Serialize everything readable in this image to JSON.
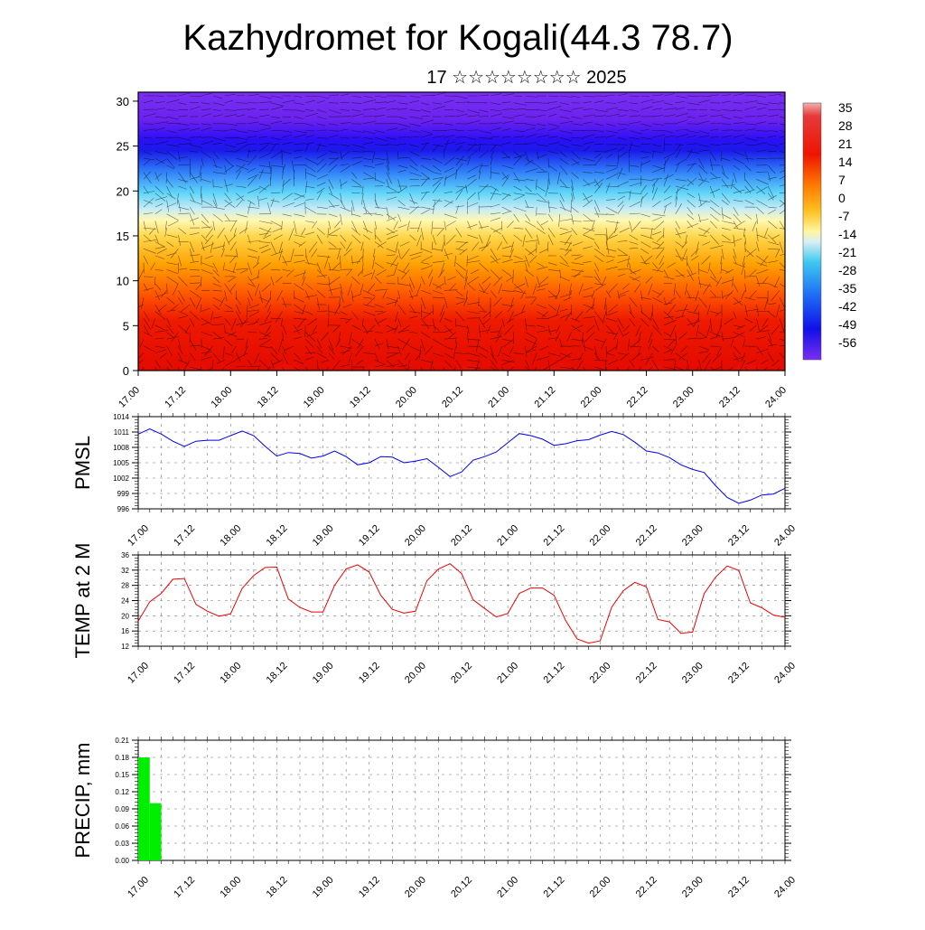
{
  "title": "Kazhydromet for Kogali(44.3 78.7)",
  "subtitle": "17 ☆☆☆☆☆☆☆☆ 2025",
  "chart_data": [
    {
      "type": "heatmap",
      "name": "vertical-section",
      "ylim": [
        0,
        31
      ],
      "yticks": [
        "0",
        "5",
        "10",
        "15",
        "20",
        "25",
        "30"
      ],
      "ytick_values": [
        0,
        5,
        10,
        15,
        20,
        25,
        30
      ],
      "xticks": [
        "17.00",
        "17.12",
        "18.00",
        "18.12",
        "19.00",
        "19.12",
        "20.00",
        "20.12",
        "21.00",
        "21.12",
        "22.00",
        "22.12",
        "23.00",
        "23.12",
        "24.00"
      ],
      "colorbar": {
        "labels": [
          "35",
          "28",
          "21",
          "14",
          "7",
          "0",
          "-7",
          "-14",
          "-21",
          "-28",
          "-35",
          "-42",
          "-49",
          "-56"
        ],
        "range": [
          -63,
          38
        ]
      },
      "colors": {
        "cold": "#7b2ff0",
        "deep": "#1a1aff",
        "mid": "#36c8f5",
        "neutral": "#fff6b0",
        "warm": "#ffb000",
        "hot": "#ee1500"
      }
    },
    {
      "type": "line",
      "name": "pmsl",
      "ylabel": "PMSL",
      "ylim": [
        996,
        1014
      ],
      "yticks": [
        "996",
        "999",
        "1002",
        "1005",
        "1008",
        "1011",
        "1014"
      ],
      "ytick_values": [
        996,
        999,
        1002,
        1005,
        1008,
        1011,
        1014
      ],
      "xticks": [
        "17.00",
        "17.12",
        "18.00",
        "18.12",
        "19.00",
        "19.12",
        "20.00",
        "20.12",
        "21.00",
        "21.12",
        "22.00",
        "22.12",
        "23.00",
        "23.12",
        "24.00"
      ],
      "color": "#0000ee",
      "series": [
        {
          "values": [
            1010.6,
            1011.6,
            1010.6,
            1009.2,
            1008.2,
            1009.2,
            1009.4,
            1009.4,
            1010.3,
            1011.2,
            1010.3,
            1008.2,
            1006.3,
            1007,
            1006.8,
            1005.9,
            1006.3,
            1007.3,
            1006.2,
            1004.6,
            1005,
            1006.2,
            1006.1,
            1005,
            1005.3,
            1005.8,
            1004.1,
            1002.3,
            1003.2,
            1005.5,
            1006.2,
            1007.1,
            1008.9,
            1010.7,
            1010.3,
            1009.6,
            1008.4,
            1008.7,
            1009.3,
            1009.5,
            1010.4,
            1011.1,
            1010.5,
            1009,
            1007.3,
            1006.9,
            1006,
            1004.6,
            1003.7,
            1003.1,
            1000.5,
            998.2,
            997.1,
            997.7,
            998.7,
            998.9,
            1000
          ]
        }
      ]
    },
    {
      "type": "line",
      "name": "temp-2m",
      "ylabel": "TEMP at 2 M",
      "ylim": [
        12,
        36
      ],
      "yticks": [
        "12",
        "16",
        "20",
        "24",
        "28",
        "32",
        "36"
      ],
      "ytick_values": [
        12,
        16,
        20,
        24,
        28,
        32,
        36
      ],
      "xticks": [
        "17.00",
        "17.12",
        "18.00",
        "18.12",
        "19.00",
        "19.12",
        "20.00",
        "20.12",
        "21.00",
        "21.12",
        "22.00",
        "22.12",
        "23.00",
        "23.12",
        "24.00"
      ],
      "color": "#ee0000",
      "series": [
        {
          "values": [
            18.6,
            23.7,
            25.9,
            29.6,
            29.8,
            23,
            21.2,
            19.9,
            20.5,
            27.2,
            30.6,
            32.7,
            32.8,
            24.4,
            22.2,
            21,
            21,
            28,
            32.3,
            33.4,
            31.5,
            25.4,
            21.7,
            20.7,
            21.2,
            29.2,
            32.3,
            33.7,
            31.1,
            24.2,
            21.9,
            19.7,
            20.6,
            25.9,
            27.3,
            27.3,
            25.4,
            18.8,
            13.9,
            12.8,
            13.4,
            22.3,
            26.6,
            28.8,
            27.6,
            19,
            18.4,
            15.4,
            15.7,
            25.8,
            30.2,
            33.1,
            31.9,
            23.4,
            22.1,
            20.2,
            19.6
          ]
        }
      ]
    },
    {
      "type": "bar",
      "name": "precip",
      "ylabel": "PRECIP, mm",
      "ylim": [
        0,
        0.21
      ],
      "yticks": [
        "0.00",
        "0.03",
        "0.06",
        "0.09",
        "0.12",
        "0.15",
        "0.18",
        "0.21"
      ],
      "ytick_values": [
        0,
        0.03,
        0.06,
        0.09,
        0.12,
        0.15,
        0.18,
        0.21
      ],
      "xticks": [
        "17.00",
        "17.12",
        "18.00",
        "18.12",
        "19.00",
        "19.12",
        "20.00",
        "20.12",
        "21.00",
        "21.12",
        "22.00",
        "22.12",
        "23.00",
        "23.12",
        "24.00"
      ],
      "color": "#00ee00",
      "bars": [
        {
          "hour": 3,
          "value": 0.18
        },
        {
          "hour": 6,
          "value": 0.1
        }
      ]
    }
  ]
}
